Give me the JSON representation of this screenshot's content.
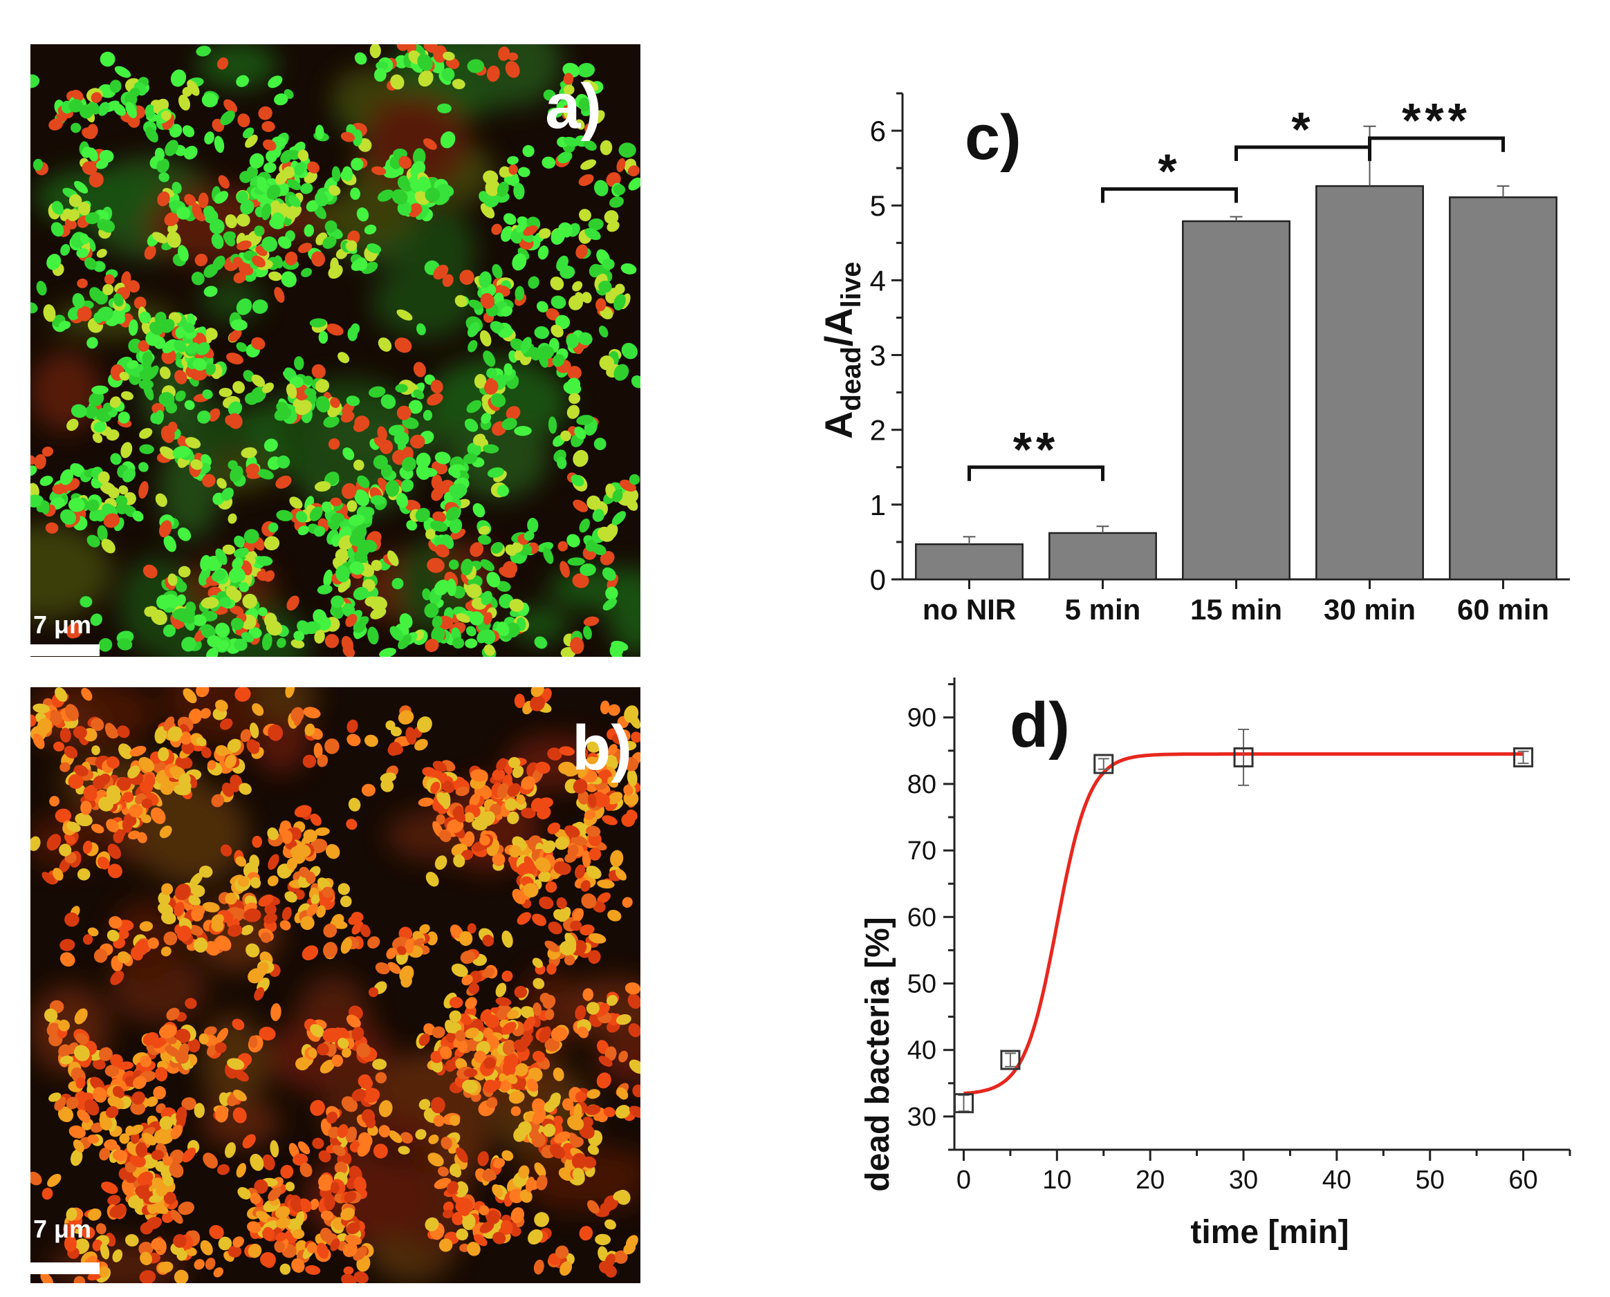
{
  "panels": {
    "a": {
      "label": "a)",
      "scale_bar": "7 μm"
    },
    "b": {
      "label": "b)",
      "scale_bar": "7 μm"
    }
  },
  "chart_data": [
    {
      "panel_label": "c)",
      "type": "bar",
      "categories": [
        "no NIR",
        "5 min",
        "15 min",
        "30 min",
        "60 min"
      ],
      "values": [
        0.47,
        0.62,
        4.79,
        5.26,
        5.11
      ],
      "errors": [
        0.1,
        0.09,
        0.06,
        0.8,
        0.15
      ],
      "ylabel_main": "A",
      "ylabel_sub1": "dead",
      "ylabel_sep": "/A",
      "ylabel_sub2": "live",
      "ylim": [
        0,
        6.5
      ],
      "yticks": [
        "0",
        "1",
        "2",
        "3",
        "4",
        "5",
        "6"
      ],
      "bar_color": "#808080",
      "significance": [
        {
          "from": 0,
          "to": 1,
          "label": "**",
          "level": 1.5
        },
        {
          "from": 1,
          "to": 2,
          "label": "*",
          "level": 5.22
        },
        {
          "from": 2,
          "to": 3,
          "label": "*",
          "level": 5.78
        },
        {
          "from": 3,
          "to": 4,
          "label": "***",
          "level": 5.9
        }
      ]
    },
    {
      "panel_label": "d)",
      "type": "scatter",
      "x": [
        0,
        5,
        15,
        30,
        60
      ],
      "y": [
        32,
        38.5,
        83,
        84,
        84
      ],
      "errors": [
        1.2,
        1.0,
        0.8,
        4.2,
        0.9
      ],
      "fit": {
        "bottom": 33.3,
        "top": 84.5,
        "x0": 10,
        "dx": 1.75,
        "color": "#e8271e"
      },
      "xlabel": "time [min]",
      "ylabel": "dead bacteria [%]",
      "xlim": [
        -1,
        65
      ],
      "ylim": [
        25,
        96
      ],
      "xticks": [
        "0",
        "10",
        "20",
        "30",
        "40",
        "50",
        "60"
      ],
      "yticks": [
        "30",
        "40",
        "50",
        "60",
        "70",
        "80",
        "90"
      ]
    }
  ]
}
